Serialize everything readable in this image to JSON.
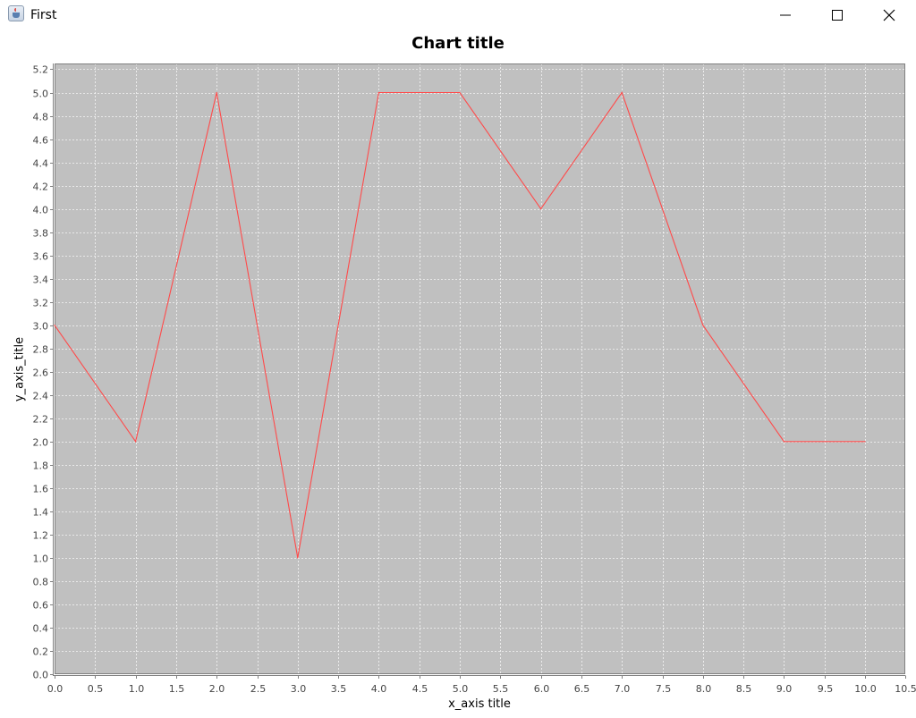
{
  "window": {
    "title": "First",
    "icon": "java-cup-icon",
    "controls": [
      "minimize-icon",
      "maximize-icon",
      "close-icon"
    ]
  },
  "chart_data": {
    "type": "line",
    "title": "Chart title",
    "xlabel": "x_axis title",
    "ylabel": "y_axis_title",
    "xlim": [
      0,
      10.5
    ],
    "ylim": [
      0,
      5.2
    ],
    "xtick_step": 0.5,
    "ytick_step": 0.2,
    "grid": true,
    "legend": "none",
    "plot_background": "#c0c0c0",
    "series": [
      {
        "color": "#ff4a4a",
        "x": [
          0,
          1,
          2,
          3,
          4,
          5,
          6,
          7,
          8,
          9,
          10
        ],
        "y": [
          3,
          2,
          5,
          1,
          5,
          5,
          4,
          5,
          3,
          2,
          2
        ]
      }
    ]
  }
}
